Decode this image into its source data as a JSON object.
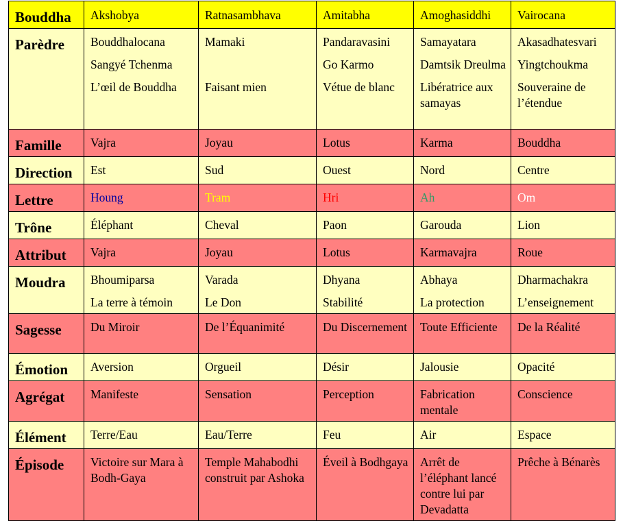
{
  "colors": {
    "header": "#ffff00",
    "light": "#ffffc0",
    "dark": "#ff8080"
  },
  "header": {
    "label": "Bouddha",
    "columns": [
      "Akshobya",
      "Ratnasambhava",
      "Amitabha",
      "Amoghasiddhi",
      "Vairocana"
    ]
  },
  "rows": [
    {
      "label": "Parèdre",
      "style": "light",
      "cells": [
        [
          "Bouddhalocana",
          "Sangyé Tchenma",
          "L’œil de Bouddha"
        ],
        [
          "Mamaki",
          "",
          "Faisant mien"
        ],
        [
          "Pandaravasini",
          "Go Karmo",
          "Vétue de blanc"
        ],
        [
          "Samayatara",
          "Damtsik Dreulma",
          "Libératrice aux samayas"
        ],
        [
          "Akasadhatesvari",
          "Yingtchoukma",
          "Souveraine de l’étendue"
        ]
      ]
    },
    {
      "label": "Famille",
      "style": "dark",
      "cells": [
        [
          "Vajra"
        ],
        [
          "Joyau"
        ],
        [
          "Lotus"
        ],
        [
          "Karma"
        ],
        [
          "Bouddha"
        ]
      ]
    },
    {
      "label": "Direction",
      "style": "light",
      "cells": [
        [
          "Est"
        ],
        [
          "Sud"
        ],
        [
          "Ouest"
        ],
        [
          "Nord"
        ],
        [
          "Centre"
        ]
      ]
    },
    {
      "label": "Lettre",
      "style": "dark",
      "cells": [
        [
          "Houng"
        ],
        [
          "Tram"
        ],
        [
          "Hri"
        ],
        [
          "Ah"
        ],
        [
          "Om"
        ]
      ],
      "text_colors": [
        "#0000a0",
        "#ffff00",
        "#ff0000",
        "#339966",
        "#ffffff"
      ]
    },
    {
      "label": "Trône",
      "style": "light",
      "cells": [
        [
          "Éléphant"
        ],
        [
          "Cheval"
        ],
        [
          "Paon"
        ],
        [
          "Garouda"
        ],
        [
          "Lion"
        ]
      ]
    },
    {
      "label": "Attribut",
      "style": "dark",
      "cells": [
        [
          "Vajra"
        ],
        [
          "Joyau"
        ],
        [
          "Lotus"
        ],
        [
          "Karmavajra"
        ],
        [
          "Roue"
        ]
      ]
    },
    {
      "label": "Moudra",
      "style": "light",
      "cells": [
        [
          "Bhoumiparsa",
          "La terre à témoin"
        ],
        [
          "Varada",
          "Le Don"
        ],
        [
          "Dhyana",
          "Stabilité"
        ],
        [
          "Abhaya",
          "La protection"
        ],
        [
          "Dharmachakra",
          "L’enseignement"
        ]
      ]
    },
    {
      "label": "Sagesse",
      "style": "dark",
      "cells": [
        [
          "Du Miroir"
        ],
        [
          "De l’Équanimité"
        ],
        [
          "Du Discernement"
        ],
        [
          "Toute Efficiente"
        ],
        [
          "De la Réalité"
        ]
      ]
    },
    {
      "label": "Émotion",
      "style": "light",
      "cells": [
        [
          "Aversion"
        ],
        [
          "Orgueil"
        ],
        [
          "Désir"
        ],
        [
          "Jalousie"
        ],
        [
          "Opacité"
        ]
      ]
    },
    {
      "label": "Agrégat",
      "style": "dark",
      "cells": [
        [
          "Manifeste"
        ],
        [
          "Sensation"
        ],
        [
          "Perception"
        ],
        [
          "Fabrication mentale"
        ],
        [
          "Conscience"
        ]
      ]
    },
    {
      "label": "Élément",
      "style": "light",
      "cells": [
        [
          "Terre/Eau"
        ],
        [
          "Eau/Terre"
        ],
        [
          "Feu"
        ],
        [
          "Air"
        ],
        [
          "Espace"
        ]
      ]
    },
    {
      "label": "Épisode",
      "style": "dark",
      "cells": [
        [
          "Victoire sur Mara à Bodh-Gaya"
        ],
        [
          "Temple Mahabodhi construit par Ashoka"
        ],
        [
          "Éveil à Bodhgaya"
        ],
        [
          "Arrêt de l’éléphant lancé contre lui par Devadatta"
        ],
        [
          "Prêche à Bénarès"
        ]
      ]
    }
  ]
}
